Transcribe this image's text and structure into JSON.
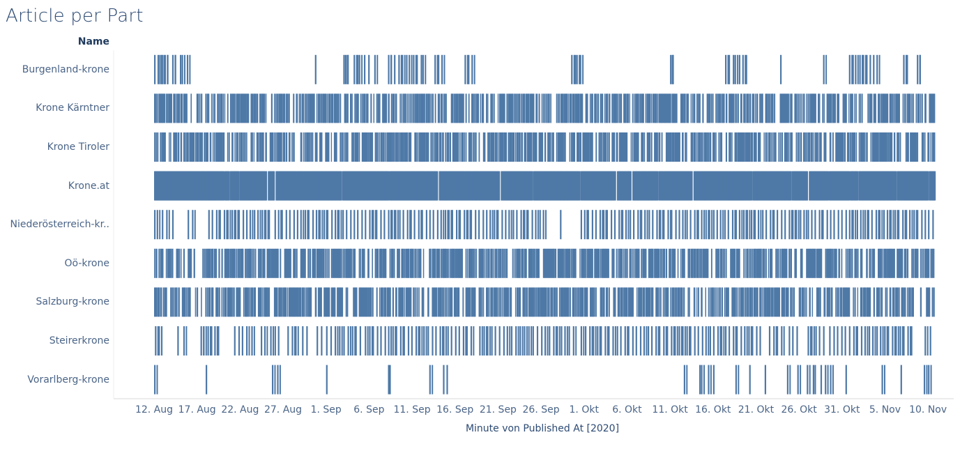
{
  "chart_data": {
    "type": "barcode",
    "title": "Article per Part",
    "row_header": "Name",
    "xlabel": "Minute von Published At [2020]",
    "rows": [
      "Burgenland-krone",
      "Krone Kärntner",
      "Krone Tiroler",
      "Krone.at",
      "Niederösterreich-kr..",
      "Oö-krone",
      "Salzburg-krone",
      "Steirerkrone",
      "Vorarlberg-krone"
    ],
    "x_ticks": [
      "12. Aug",
      "17. Aug",
      "22. Aug",
      "27. Aug",
      "1. Sep",
      "6. Sep",
      "11. Sep",
      "16. Sep",
      "21. Sep",
      "26. Sep",
      "1. Okt",
      "6. Okt",
      "11. Okt",
      "16. Okt",
      "21. Okt",
      "26. Okt",
      "31. Okt",
      "5. Nov",
      "10. Nov"
    ],
    "x_tick_days": [
      12,
      17,
      22,
      27,
      32,
      37,
      42,
      47,
      52,
      57,
      62,
      67,
      72,
      77,
      82,
      87,
      92,
      97,
      102
    ],
    "x_domain_days": [
      12,
      102.8
    ],
    "x_day_note": "days are counted from 1 Aug 2020 (1 = 1. Aug)",
    "series": [
      {
        "name": "Burgenland-krone",
        "days": [
          12.0,
          12.4,
          12.6,
          12.8,
          13.2,
          13.5,
          14.1,
          14.4,
          15.0,
          15.2,
          15.8,
          30.7,
          34.0,
          34.2,
          34.4,
          35.2,
          35.6,
          35.8,
          36.4,
          36.9,
          37.6,
          39.2,
          39.5,
          39.9,
          40.4,
          40.8,
          41.3,
          41.6,
          42.1,
          42.5,
          43.0,
          43.2,
          44.6,
          45.0,
          45.4,
          48.1,
          48.5,
          48.9,
          60.5,
          60.9,
          61.1,
          61.5,
          72.0,
          72.2,
          78.4,
          78.8,
          79.3,
          79.5,
          80.0,
          80.4,
          80.8,
          84.8,
          89.8,
          92.8,
          93.2,
          93.5,
          94.0,
          94.4,
          94.8,
          95.2,
          95.6,
          96.0,
          99.1,
          99.5,
          100.7,
          101.0
        ]
      },
      {
        "name": "Krone Kärntner",
        "dense": true,
        "gaps": [
          16.0,
          17.6,
          25.4,
          28.3,
          33.9,
          40.2,
          46.1,
          51.6,
          56.9,
          58.3,
          63.7,
          67.4,
          72.9,
          76.0,
          80.0,
          84.5,
          89.0,
          91.8,
          94.7,
          98.8,
          101.9
        ]
      },
      {
        "name": "Krone Tiroler",
        "dense": true,
        "gaps": [
          12.5,
          14.9,
          20.2,
          23.0,
          28.8,
          31.6,
          37.5,
          42.0,
          48.4,
          53.0,
          58.6,
          63.1,
          67.2,
          71.3,
          74.1,
          78.2,
          82.6,
          86.4,
          90.3,
          95.0,
          99.1,
          101.0,
          102.1
        ]
      },
      {
        "name": "Krone.at",
        "dense": true,
        "solid": true,
        "gaps": [
          20.1,
          20.7,
          21.8,
          25.1,
          26.0,
          33.8,
          39.3,
          45.0,
          52.2,
          56.0,
          61.5,
          65.7,
          67.5,
          70.6,
          74.6,
          81.5,
          86.1,
          88.0,
          90.4,
          92.8,
          93.8,
          98.3,
          102.0
        ]
      },
      {
        "name": "Niederösterreich-kr..",
        "days": [
          12.0,
          12.3,
          12.9,
          13.4,
          14.1,
          15.9,
          16.4,
          18.3,
          18.7,
          19.2,
          19.6,
          20.1,
          20.5,
          21.0,
          21.4,
          21.8,
          22.3,
          22.7,
          23.1,
          23.6,
          24.0,
          24.5,
          24.9,
          25.3,
          26.0,
          26.4,
          26.8,
          27.3,
          27.7,
          28.2,
          28.6,
          29.0,
          29.5,
          29.9,
          30.4,
          30.8,
          31.2,
          31.7,
          32.1,
          32.6,
          33.0,
          33.4,
          33.9,
          34.3,
          34.8,
          35.2,
          35.6,
          36.1,
          36.5,
          37.0,
          37.4,
          37.8,
          38.3,
          38.7,
          39.2,
          39.6,
          40.0,
          40.5,
          40.9,
          41.4,
          41.8,
          42.2,
          42.7,
          43.1,
          43.6,
          44.0,
          44.4,
          44.9,
          45.3,
          45.8,
          46.2,
          46.6,
          47.1,
          47.5,
          48.0,
          48.4,
          48.8,
          49.3,
          49.7,
          50.2,
          50.6,
          51.0,
          51.5,
          51.9,
          52.4,
          52.8,
          53.2,
          53.7,
          54.1,
          54.6,
          55.0,
          55.4,
          55.9,
          56.3,
          56.8,
          57.2,
          59.2,
          61.6,
          62.0,
          62.4,
          62.9,
          63.3,
          63.8,
          64.2,
          64.6,
          65.1,
          65.5,
          66.0,
          66.4,
          66.8,
          67.3,
          67.7,
          68.2,
          68.6,
          69.0,
          69.5,
          69.9,
          70.4,
          70.8,
          71.2,
          71.7,
          72.1,
          72.6,
          73.0,
          73.4,
          73.9,
          74.3,
          74.8,
          75.2,
          75.6,
          76.1,
          76.5,
          77.0,
          77.4,
          77.8,
          78.3,
          78.7,
          79.2,
          79.6,
          80.0,
          80.5,
          80.9,
          81.4,
          81.8,
          82.2,
          82.7,
          83.1,
          83.6,
          84.0,
          84.4,
          84.9,
          85.3,
          85.8,
          86.2,
          86.6,
          87.1,
          87.5,
          88.0,
          88.4,
          88.8,
          89.3,
          89.7,
          90.2,
          90.6,
          91.0,
          91.5,
          91.9,
          92.4,
          92.8,
          93.2,
          93.7,
          94.1,
          94.6,
          95.0,
          95.4,
          95.9,
          96.3,
          96.8,
          97.2,
          97.6,
          98.1,
          98.5,
          99.0,
          99.4,
          99.8,
          100.3,
          100.7,
          101.2,
          101.6,
          102.0,
          102.5
        ]
      },
      {
        "name": "Oö-krone",
        "dense": true,
        "gaps": [
          13.1,
          15.7,
          17.0,
          22.4,
          26.9,
          30.2,
          35.5,
          39.1,
          43.7,
          48.0,
          53.4,
          57.0,
          61.2,
          65.0,
          69.3,
          72.7,
          76.5,
          80.3,
          84.0,
          87.6,
          89.7,
          91.4,
          95.9,
          99.8
        ]
      },
      {
        "name": "Salzburg-krone",
        "dense": true,
        "gaps": [
          13.6,
          16.3,
          17.2,
          17.7,
          22.1,
          25.7,
          30.5,
          34.0,
          37.6,
          44.0,
          46.7,
          49.5,
          53.8,
          58.9,
          63.6,
          67.9,
          71.0,
          75.8,
          79.0,
          82.2,
          86.7,
          88.8,
          89.6,
          91.0,
          93.0,
          95.5,
          97.7,
          98.7,
          99.4,
          100.5,
          101.3
        ]
      },
      {
        "name": "Steirerkrone",
        "days": [
          12.1,
          12.5,
          12.8,
          14.7,
          15.4,
          17.4,
          17.7,
          18.2,
          18.6,
          19.0,
          19.4,
          21.3,
          21.8,
          22.2,
          22.7,
          23.3,
          24.4,
          24.8,
          25.5,
          26.0,
          26.4,
          27.5,
          28.0,
          28.4,
          29.2,
          29.7,
          30.9,
          31.4,
          32.0,
          32.5,
          33.0,
          33.5,
          34.0,
          34.5,
          35.0,
          35.4,
          35.9,
          36.5,
          37.0,
          37.4,
          37.9,
          38.3,
          38.8,
          39.2,
          39.7,
          40.1,
          40.6,
          41.0,
          41.5,
          41.9,
          42.4,
          42.8,
          43.3,
          43.8,
          44.3,
          44.7,
          45.2,
          45.6,
          46.1,
          46.5,
          47.0,
          47.4,
          47.9,
          48.3,
          48.8,
          49.8,
          50.3,
          50.7,
          51.2,
          51.6,
          52.1,
          52.6,
          53.0,
          53.5,
          54.0,
          54.5,
          55.0,
          55.5,
          56.0,
          56.5,
          57.0,
          57.4,
          57.9,
          58.4,
          58.8,
          59.3,
          59.7,
          60.2,
          60.7,
          61.6,
          62.1,
          62.6,
          63.0,
          63.5,
          63.9,
          64.4,
          64.8,
          65.3,
          65.8,
          66.2,
          66.7,
          67.1,
          67.6,
          68.0,
          68.5,
          68.9,
          69.4,
          69.8,
          70.3,
          70.7,
          71.2,
          71.6,
          72.1,
          72.5,
          73.0,
          73.4,
          73.9,
          74.3,
          74.8,
          75.2,
          75.7,
          76.1,
          76.6,
          77.0,
          77.5,
          77.9,
          78.4,
          78.8,
          79.3,
          79.7,
          80.2,
          80.6,
          81.1,
          81.5,
          82.0,
          82.4,
          83.5,
          84.0,
          84.4,
          84.9,
          85.8,
          86.2,
          86.7,
          88.0,
          88.4,
          88.9,
          89.3,
          89.8,
          90.5,
          91.0,
          91.4,
          91.9,
          92.3,
          92.8,
          93.3,
          93.7,
          94.2,
          94.6,
          95.1,
          95.5,
          96.0,
          96.4,
          96.9,
          97.3,
          97.8,
          98.2,
          98.7,
          99.1,
          99.6,
          100.0,
          101.6,
          102.2
        ]
      },
      {
        "name": "Vorarlberg-krone",
        "days": [
          12.0,
          18.0,
          25.7,
          26.3,
          32.0,
          39.2,
          39.35,
          44.0,
          45.6,
          46.0,
          73.6,
          75.4,
          75.6,
          76.4,
          77.0,
          79.6,
          81.2,
          83.0,
          85.6,
          86.8,
          87.9,
          88.6,
          88.8,
          89.5,
          90.0,
          90.6,
          92.4,
          96.6,
          98.8,
          101.5,
          102.0
        ]
      }
    ]
  }
}
